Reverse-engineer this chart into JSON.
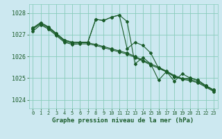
{
  "background_color": "#cce8f0",
  "grid_color": "#88ccbb",
  "line_color": "#1a5c2a",
  "xlabel": "Graphe pression niveau de la mer (hPa)",
  "ylim": [
    1023.6,
    1028.4
  ],
  "xlim": [
    -0.5,
    23.5
  ],
  "yticks": [
    1024,
    1025,
    1026,
    1027,
    1028
  ],
  "xticks": [
    0,
    1,
    2,
    3,
    4,
    5,
    6,
    7,
    8,
    9,
    10,
    11,
    12,
    13,
    14,
    15,
    16,
    17,
    18,
    19,
    20,
    21,
    22,
    23
  ],
  "s1": [
    1027.3,
    1027.55,
    1027.35,
    1027.05,
    1026.75,
    1026.65,
    1026.65,
    1026.65,
    1027.7,
    1027.65,
    1027.8,
    1027.9,
    1026.35,
    1026.65,
    1026.5,
    1026.15,
    1025.45,
    1025.3,
    1024.85,
    1025.2,
    1025.0,
    1024.9,
    1024.65,
    1024.45
  ],
  "s2": [
    1027.3,
    1027.55,
    1027.35,
    1027.05,
    1026.75,
    1026.65,
    1026.65,
    1026.65,
    1027.7,
    1027.65,
    1027.8,
    1027.9,
    1027.6,
    1025.65,
    1025.95,
    1025.65,
    1024.9,
    1025.3,
    1025.05,
    1024.95,
    1025.0,
    1024.9,
    1024.65,
    1024.45
  ],
  "s3": [
    1027.25,
    1027.5,
    1027.3,
    1027.0,
    1026.7,
    1026.6,
    1026.62,
    1026.62,
    1026.55,
    1026.45,
    1026.35,
    1026.25,
    1026.15,
    1026.0,
    1025.82,
    1025.65,
    1025.5,
    1025.32,
    1025.12,
    1024.98,
    1024.93,
    1024.83,
    1024.62,
    1024.42
  ],
  "s4": [
    1027.15,
    1027.45,
    1027.25,
    1026.95,
    1026.65,
    1026.55,
    1026.57,
    1026.57,
    1026.5,
    1026.4,
    1026.3,
    1026.2,
    1026.1,
    1025.95,
    1025.78,
    1025.6,
    1025.45,
    1025.28,
    1025.08,
    1024.94,
    1024.88,
    1024.78,
    1024.58,
    1024.38
  ]
}
